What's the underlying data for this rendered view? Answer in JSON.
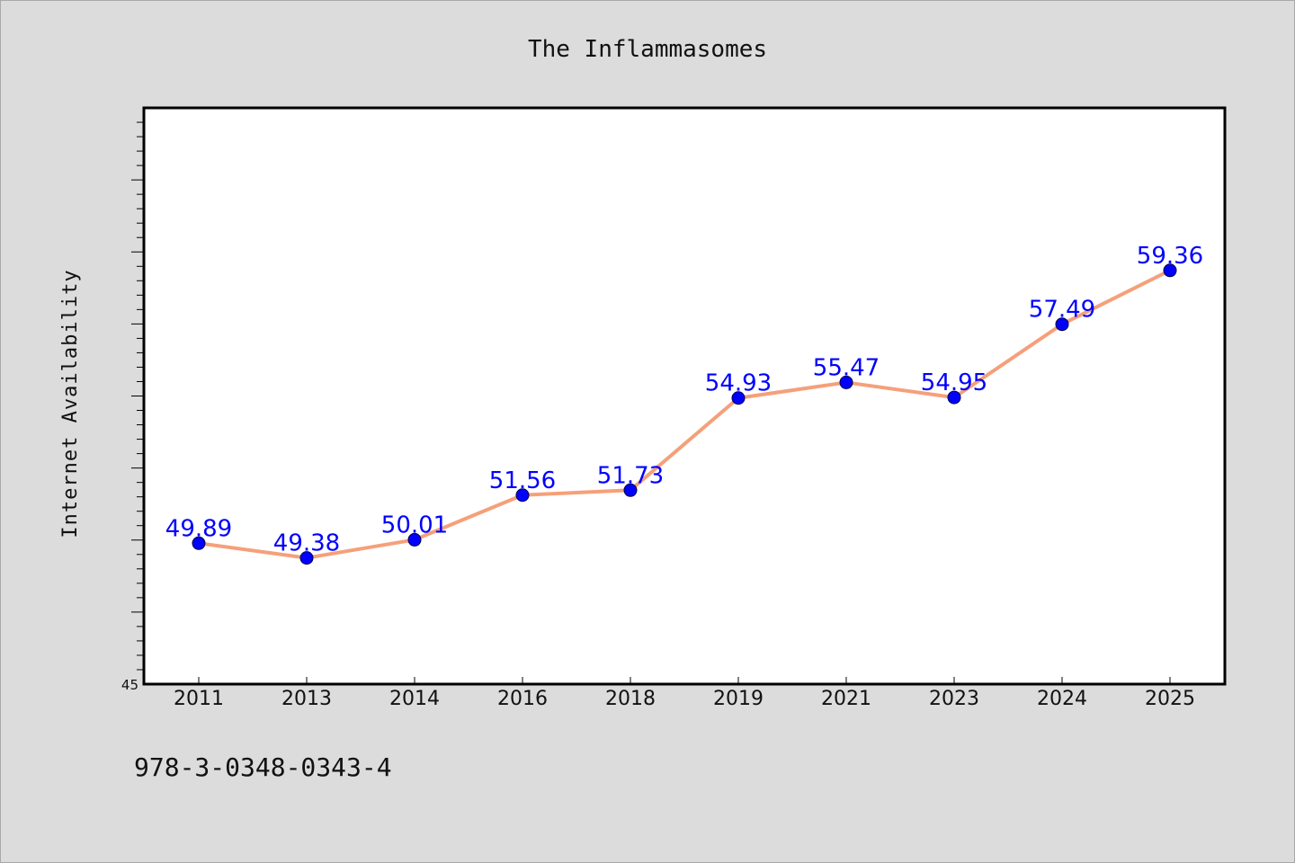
{
  "chart_data": {
    "type": "line",
    "title": "The Inflammasomes",
    "xlabel": "",
    "ylabel": "Internet Availability",
    "categories": [
      "2011",
      "2013",
      "2014",
      "2016",
      "2018",
      "2019",
      "2021",
      "2023",
      "2024",
      "2025"
    ],
    "series": [
      {
        "values": [
          49.89,
          49.38,
          50.01,
          51.56,
          51.73,
          54.93,
          55.47,
          54.95,
          57.49,
          59.36
        ],
        "labels": [
          "49.89",
          "49.38",
          "50.01",
          "51.56",
          "51.73",
          "54.93",
          "55.47",
          "54.95",
          "57.49",
          "59.36"
        ],
        "line_color": "#f5a07a",
        "marker_color": "#0000ff"
      }
    ],
    "ylim": [
      45,
      65
    ],
    "y_tick_labels": [
      "45"
    ],
    "grid": false,
    "legend": "none"
  },
  "footer": {
    "isbn": "978-3-0348-0343-4"
  },
  "colors": {
    "background": "#dcdcdc",
    "plot_background": "#ffffff",
    "line": "#f5a07a",
    "marker": "#0000ff",
    "data_label": "#0000ff"
  }
}
